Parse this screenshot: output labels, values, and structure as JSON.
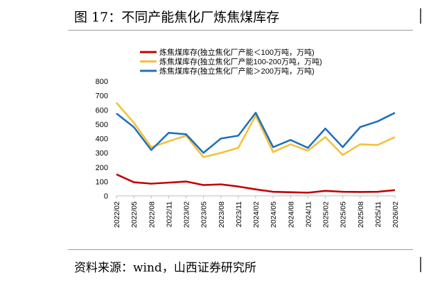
{
  "figure": {
    "title": "图 17：不同产能焦化厂炼焦煤库存",
    "source": "资料来源：wind，山西证券研究所"
  },
  "chart_data": {
    "type": "line",
    "title": "",
    "xlabel": "",
    "ylabel": "",
    "ylim": [
      0,
      800
    ],
    "yticks": [
      "0",
      "100",
      "200",
      "300",
      "400",
      "500",
      "600",
      "700",
      "800"
    ],
    "x": [
      "2022/02",
      "2022/05",
      "2022/08",
      "2022/11",
      "2023/02",
      "2023/05",
      "2023/08",
      "2023/11",
      "2024/02",
      "2024/05",
      "2024/08",
      "2024/11",
      "2025/02",
      "2025/05",
      "2025/08",
      "2025/11",
      "2026/02"
    ],
    "legend_position": "top",
    "series": [
      {
        "name": "炼焦煤库存(独立焦化厂产能＜100万吨，万吨)",
        "color": "#c00000",
        "values": [
          150,
          95,
          85,
          92,
          100,
          75,
          80,
          65,
          45,
          28,
          25,
          22,
          35,
          28,
          27,
          28,
          40
        ]
      },
      {
        "name": "炼焦煤库存(独立焦化厂产能100-200万吨，万吨)",
        "color": "#f5c035",
        "values": [
          650,
          510,
          340,
          380,
          420,
          270,
          300,
          335,
          560,
          305,
          360,
          315,
          410,
          285,
          360,
          355,
          410
        ]
      },
      {
        "name": "炼焦煤库存(独立焦化厂产能＞200万吨，万吨)",
        "color": "#1f6fbf",
        "values": [
          575,
          480,
          320,
          440,
          430,
          300,
          400,
          420,
          580,
          340,
          390,
          335,
          470,
          340,
          480,
          520,
          580
        ]
      }
    ]
  }
}
